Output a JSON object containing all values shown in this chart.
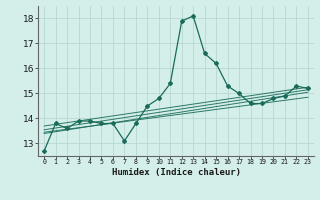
{
  "xlabel": "Humidex (Indice chaleur)",
  "ylabel": "",
  "bg_color": "#d4eeea",
  "grid_color": "#b8d8d4",
  "line_color": "#1a6b5a",
  "xlim": [
    -0.5,
    23.5
  ],
  "ylim": [
    12.5,
    18.5
  ],
  "yticks": [
    13,
    14,
    15,
    16,
    17,
    18
  ],
  "xtick_labels": [
    "0",
    "1",
    "2",
    "3",
    "4",
    "5",
    "6",
    "7",
    "8",
    "9",
    "10",
    "11",
    "12",
    "13",
    "14",
    "15",
    "16",
    "17",
    "18",
    "19",
    "20",
    "21",
    "22",
    "23"
  ],
  "xtick_positions": [
    0,
    1,
    2,
    3,
    4,
    5,
    6,
    7,
    8,
    9,
    10,
    11,
    12,
    13,
    14,
    15,
    16,
    17,
    18,
    19,
    20,
    21,
    22,
    23
  ],
  "series": [
    [
      0,
      12.7
    ],
    [
      1,
      13.8
    ],
    [
      2,
      13.6
    ],
    [
      3,
      13.9
    ],
    [
      4,
      13.9
    ],
    [
      5,
      13.8
    ],
    [
      6,
      13.8
    ],
    [
      7,
      13.1
    ],
    [
      8,
      13.8
    ],
    [
      9,
      14.5
    ],
    [
      10,
      14.8
    ],
    [
      11,
      15.4
    ],
    [
      12,
      17.9
    ],
    [
      13,
      18.1
    ],
    [
      14,
      16.6
    ],
    [
      15,
      16.2
    ],
    [
      16,
      15.3
    ],
    [
      17,
      15.0
    ],
    [
      18,
      14.6
    ],
    [
      19,
      14.6
    ],
    [
      20,
      14.8
    ],
    [
      21,
      14.9
    ],
    [
      22,
      15.3
    ],
    [
      23,
      15.2
    ]
  ],
  "trend_lines": [
    {
      "x": [
        0,
        23
      ],
      "y": [
        13.4,
        15.05
      ]
    },
    {
      "x": [
        0,
        23
      ],
      "y": [
        13.55,
        15.15
      ]
    },
    {
      "x": [
        0,
        23
      ],
      "y": [
        13.7,
        15.25
      ]
    },
    {
      "x": [
        0,
        23
      ],
      "y": [
        13.45,
        14.85
      ]
    }
  ]
}
